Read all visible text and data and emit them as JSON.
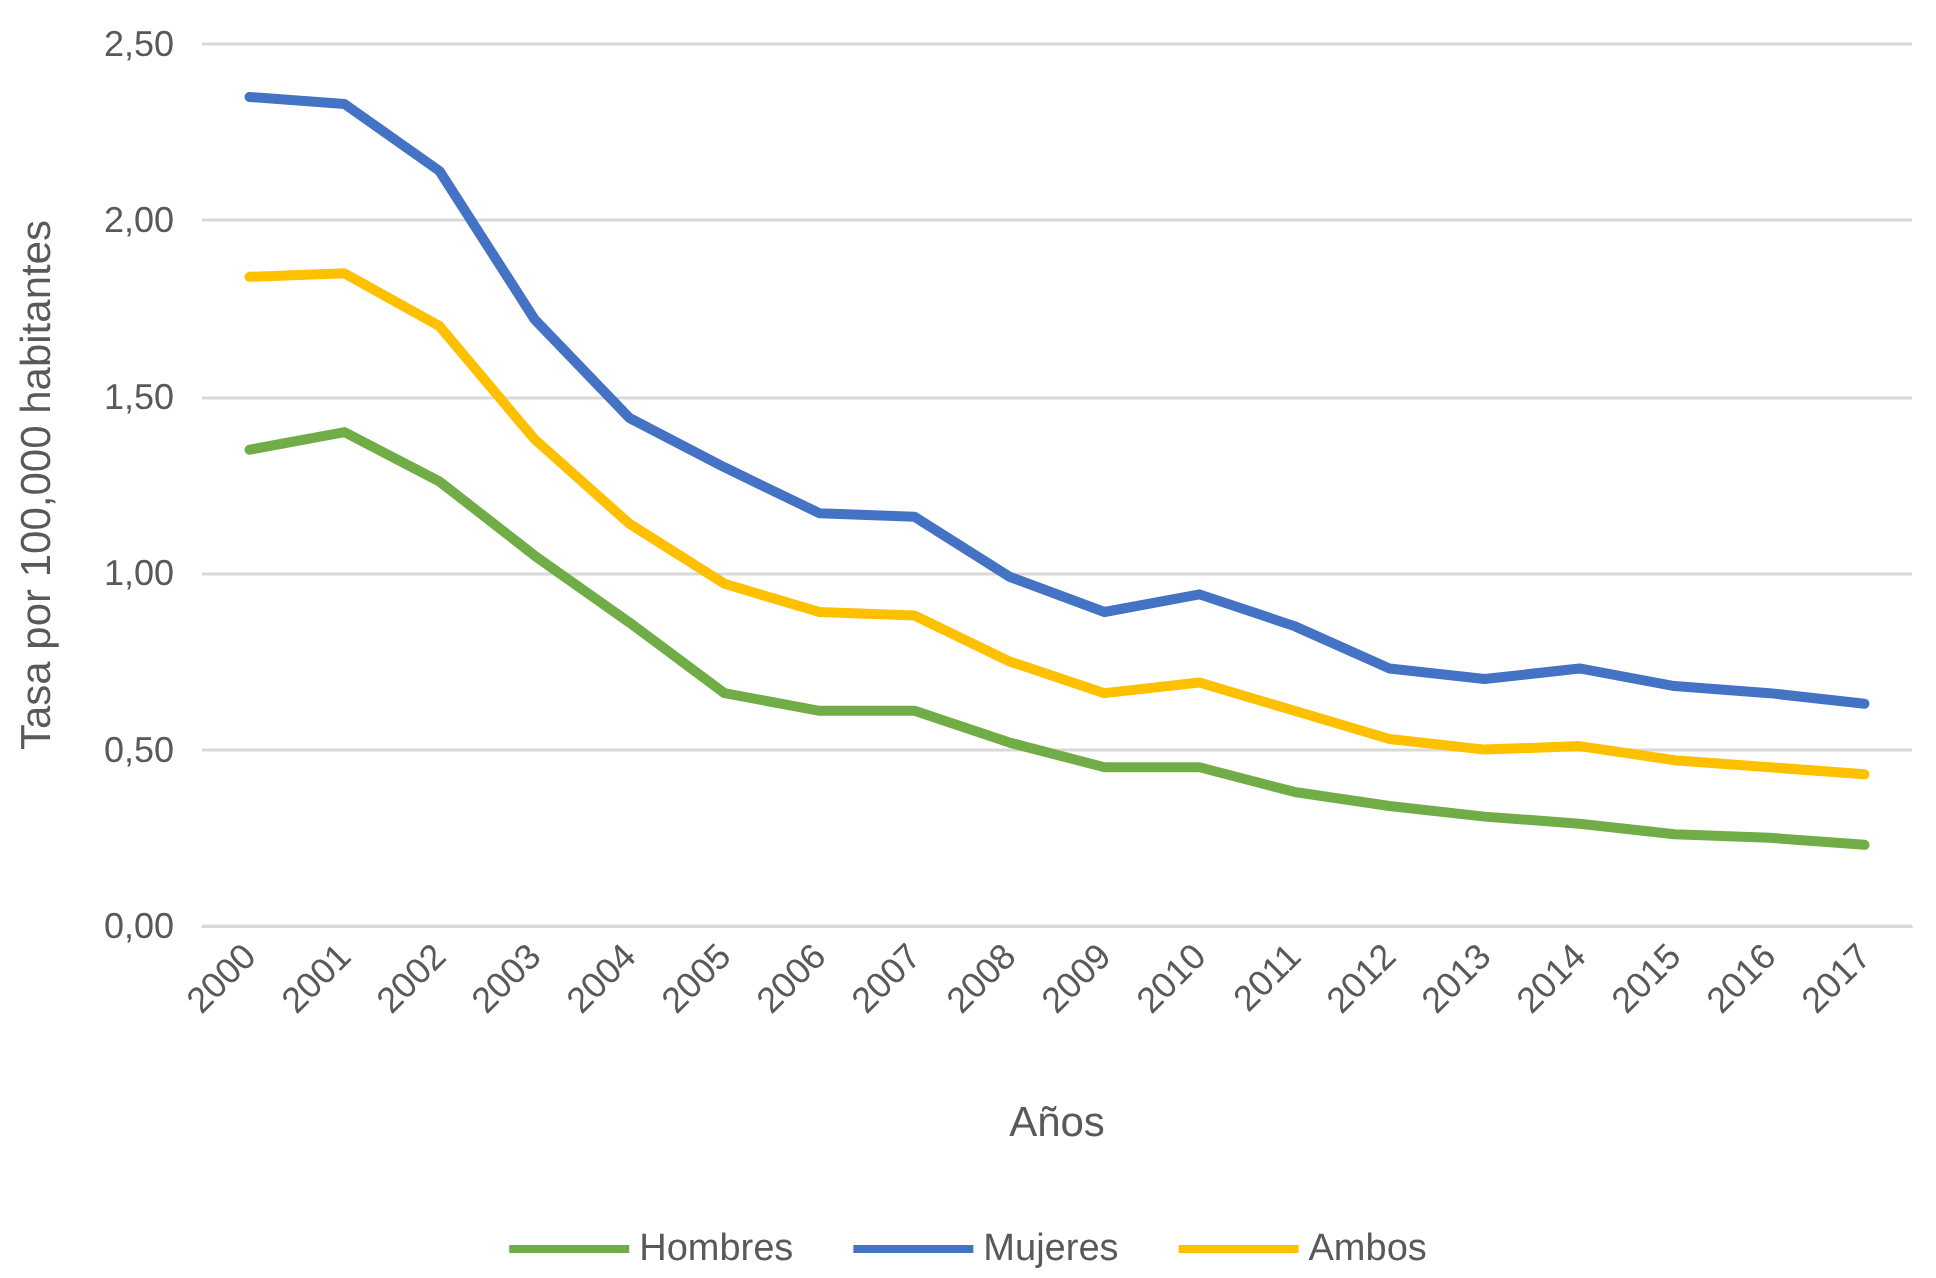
{
  "chart_data": {
    "type": "line",
    "xlabel": "Años",
    "ylabel": "Tasa por 100,000 habitantes",
    "categories": [
      "2000",
      "2001",
      "2002",
      "2003",
      "2004",
      "2005",
      "2006",
      "2007",
      "2008",
      "2009",
      "2010",
      "2011",
      "2012",
      "2013",
      "2014",
      "2015",
      "2016",
      "2017"
    ],
    "series": [
      {
        "name": "Hombres",
        "color": "#70ad47",
        "values": [
          1.35,
          1.4,
          1.26,
          1.05,
          0.86,
          0.66,
          0.61,
          0.61,
          0.52,
          0.45,
          0.45,
          0.38,
          0.34,
          0.31,
          0.29,
          0.26,
          0.25,
          0.23
        ]
      },
      {
        "name": "Mujeres",
        "color": "#4472c4",
        "values": [
          2.35,
          2.33,
          2.14,
          1.72,
          1.44,
          1.3,
          1.17,
          1.16,
          0.99,
          0.89,
          0.94,
          0.85,
          0.73,
          0.7,
          0.73,
          0.68,
          0.66,
          0.63
        ]
      },
      {
        "name": "Ambos",
        "color": "#ffc000",
        "values": [
          1.84,
          1.85,
          1.7,
          1.38,
          1.14,
          0.97,
          0.89,
          0.88,
          0.75,
          0.66,
          0.69,
          0.61,
          0.53,
          0.5,
          0.51,
          0.47,
          0.45,
          0.43
        ]
      }
    ],
    "ylim": [
      0,
      2.5
    ],
    "yticks": [
      {
        "value": 0,
        "label": "0,00"
      },
      {
        "value": 0.5,
        "label": "0,50"
      },
      {
        "value": 1,
        "label": "1,00"
      },
      {
        "value": 1.5,
        "label": "1,50"
      },
      {
        "value": 2,
        "label": "2,00"
      },
      {
        "value": 2.5,
        "label": "2,50"
      }
    ],
    "grid": "y",
    "legend": "bottom",
    "marker": "none",
    "line_style": "solid"
  }
}
